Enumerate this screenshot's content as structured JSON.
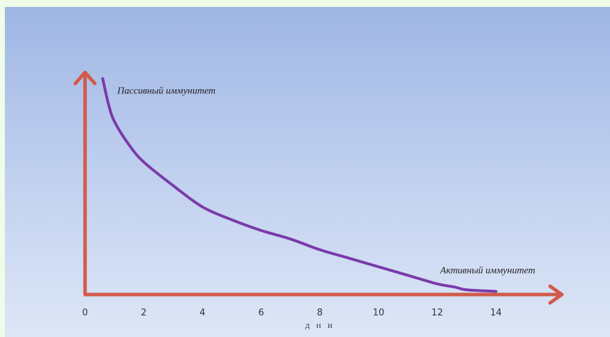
{
  "colors": {
    "axis": "#d25a4a",
    "curve": "#7a3aaa",
    "background_top": "#9fb6e4",
    "background_bottom": "#dde6f6"
  },
  "chart_data": {
    "type": "line",
    "title": "",
    "xlabel": "д н и",
    "ylabel": "",
    "xlim": [
      0,
      14
    ],
    "x_ticks": [
      "0",
      "2",
      "4",
      "6",
      "8",
      "10",
      "12",
      "14"
    ],
    "grid": false,
    "series": [
      {
        "x": [
          0.6,
          0.8,
          1.0,
          1.5,
          2,
          3,
          4,
          5,
          6,
          7,
          8,
          9,
          10,
          11,
          12,
          12.6,
          13,
          14
        ],
        "y": [
          100,
          88,
          80,
          69,
          61,
          50,
          40,
          34,
          29,
          25,
          20,
          16,
          12,
          8,
          4,
          2.5,
          1.2,
          0.5
        ]
      }
    ],
    "annotations": [
      {
        "text": "Пассивный иммунитет",
        "x": 1.1,
        "y": 93
      },
      {
        "text": "Активный иммунитет",
        "x": 12.1,
        "y": 9
      }
    ]
  }
}
